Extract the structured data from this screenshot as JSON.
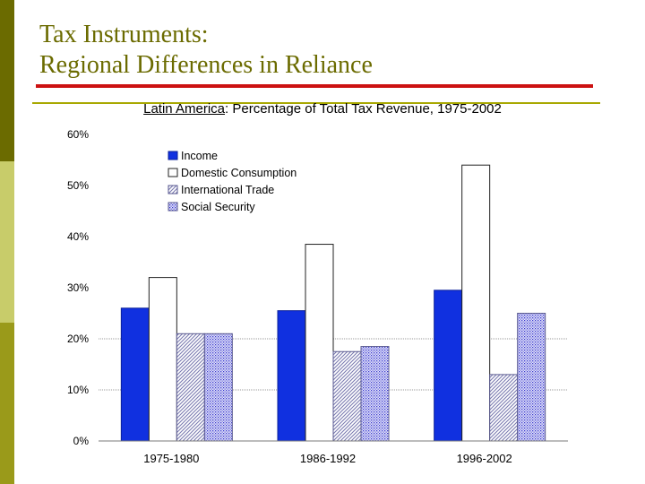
{
  "slide": {
    "title_line1": "Tax Instruments:",
    "title_line2": "Regional Differences in Reliance"
  },
  "colors": {
    "sidebar_dark": "#6b6b00",
    "sidebar_light": "#c8cc6a",
    "title_text": "#6b6b00",
    "red_rule": "#cc1111",
    "olive_rule": "#a8a800",
    "income_blue": "#1030e0",
    "trade_hatch": "#7a7ab0",
    "social_hatch": "#3a3ad0"
  },
  "chart_data": {
    "type": "bar",
    "title_region": "Latin America",
    "title_rest": ": Percentage of Total Tax Revenue, 1975-2002",
    "categories": [
      "1975-1980",
      "1986-1992",
      "1996-2002"
    ],
    "series": [
      {
        "name": "Income",
        "values": [
          26,
          25.5,
          29.5
        ],
        "style": "solid-blue"
      },
      {
        "name": "Domestic Consumption",
        "values": [
          32,
          38.5,
          54
        ],
        "style": "white"
      },
      {
        "name": "International Trade",
        "values": [
          21,
          17.5,
          13
        ],
        "style": "diagonal-hatch"
      },
      {
        "name": "Social Security",
        "values": [
          21,
          18.5,
          25
        ],
        "style": "dotted-hatch"
      }
    ],
    "y_ticks": [
      "0%",
      "10%",
      "20%",
      "30%",
      "40%",
      "50%",
      "60%"
    ],
    "ylim": [
      0,
      60
    ],
    "grid": true,
    "legend_position": "top-left"
  }
}
